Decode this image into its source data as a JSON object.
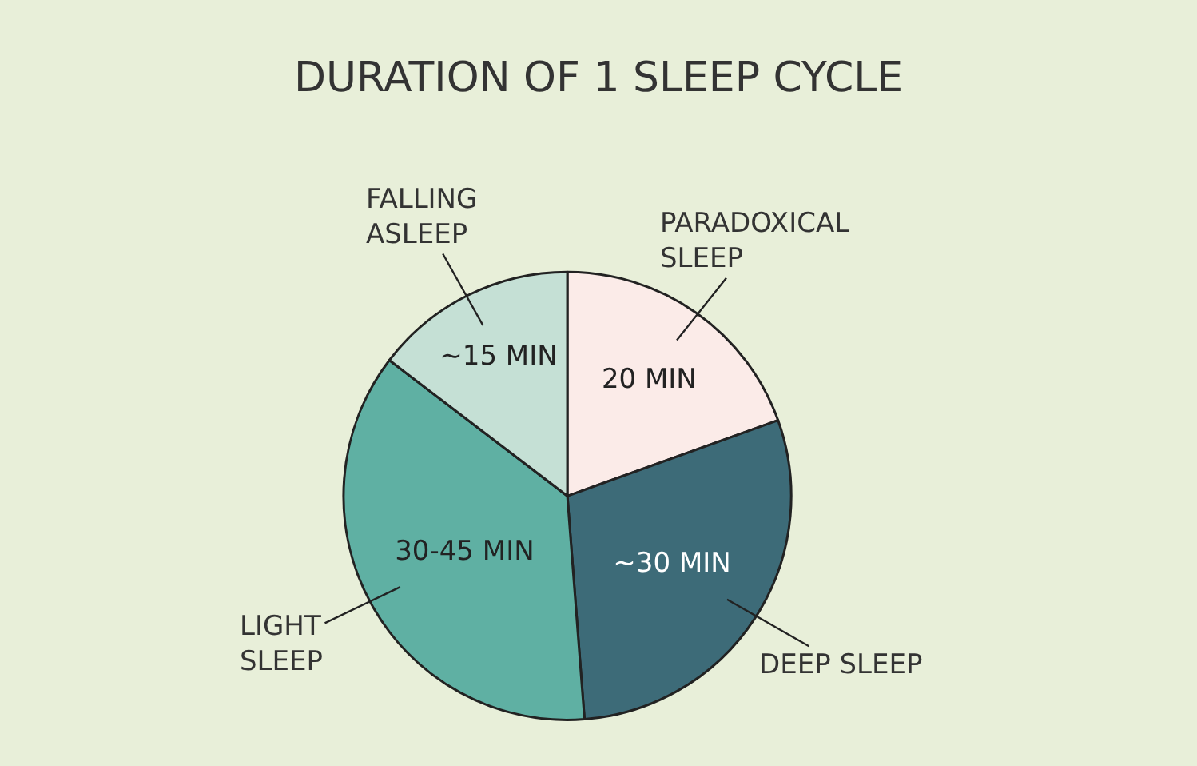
{
  "chart_data": {
    "type": "pie",
    "title": "DURATION OF 1 SLEEP CYCLE",
    "categories": [
      "PARADOXICAL SLEEP",
      "DEEP SLEEP",
      "LIGHT SLEEP",
      "FALLING ASLEEP"
    ],
    "values": [
      20,
      30,
      37.5,
      15
    ],
    "value_labels": [
      "20 MIN",
      "~30 MIN",
      "30-45 MIN",
      "~15 MIN"
    ],
    "colors": [
      "#fbebe8",
      "#3d6b78",
      "#5fb0a3",
      "#c5e0d5"
    ],
    "legend": false
  }
}
